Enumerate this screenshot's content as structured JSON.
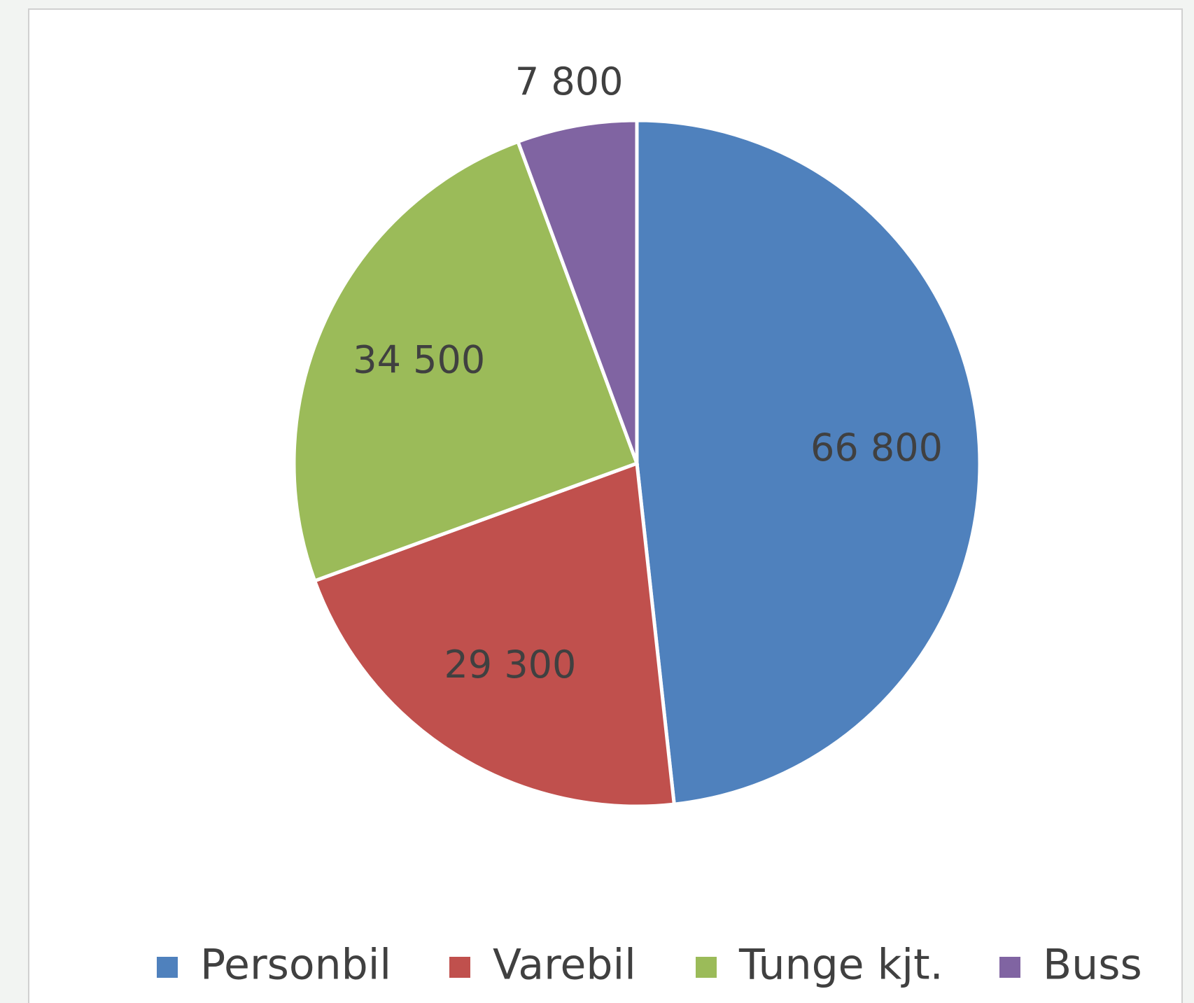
{
  "chart_data": {
    "type": "pie",
    "categories": [
      "Personbil",
      "Varebil",
      "Tunge kjt.",
      "Buss"
    ],
    "values": [
      66800,
      29300,
      34500,
      7800
    ],
    "value_labels": [
      "66 800",
      "29 300",
      "34 500",
      "7 800"
    ],
    "colors": [
      "#4f81bd",
      "#c0504d",
      "#9bbb59",
      "#8064a2"
    ],
    "legend": "bottom"
  }
}
